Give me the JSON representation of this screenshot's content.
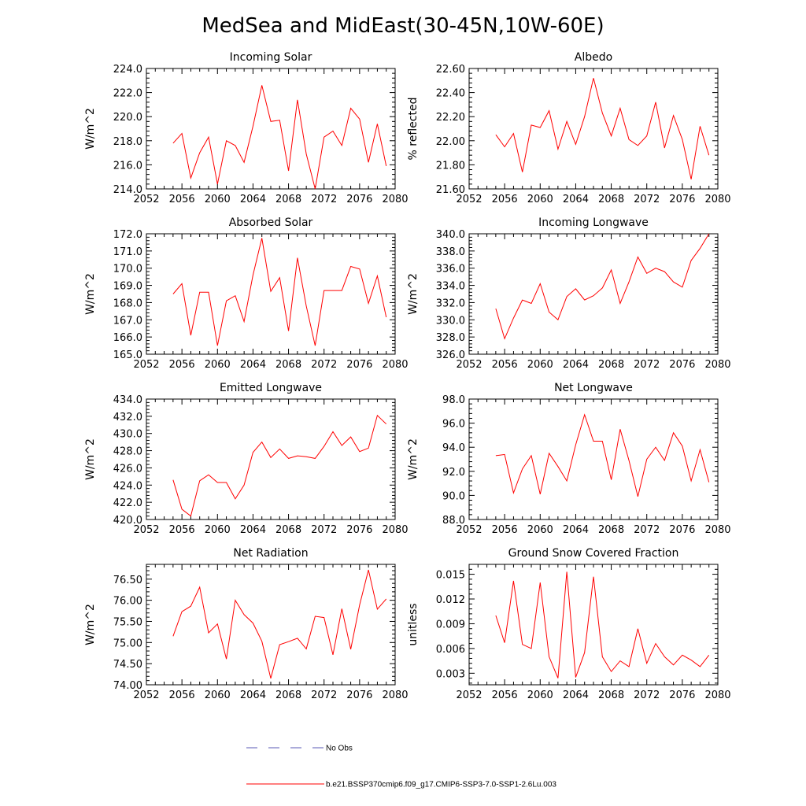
{
  "figure": {
    "title": "MedSea and MidEast(30-45N,10W-60E)"
  },
  "legend": [
    {
      "label": "No Obs",
      "color": "#5a5ab4",
      "dash": "dashed"
    },
    {
      "label": "b.e21.BSSP370cmip6.f09_g17.CMIP6-SSP3-7.0-SSP1-2.6Lu.003",
      "color": "#ff0000",
      "dash": "solid"
    }
  ],
  "chart_data": [
    {
      "type": "line",
      "title": "Incoming Solar",
      "ylabel": "W/m^2",
      "xlabel": "",
      "xlim": [
        2052,
        2080
      ],
      "xticks": [
        2052,
        2056,
        2060,
        2064,
        2068,
        2072,
        2076,
        2080
      ],
      "ylim": [
        214,
        224
      ],
      "yticks": [
        "214.0",
        "216.0",
        "218.0",
        "220.0",
        "222.0",
        "224.0"
      ],
      "x": [
        2055,
        2056,
        2057,
        2058,
        2059,
        2060,
        2061,
        2062,
        2063,
        2064,
        2065,
        2066,
        2067,
        2068,
        2069,
        2070,
        2071,
        2072,
        2073,
        2074,
        2075,
        2076,
        2077,
        2078,
        2079
      ],
      "series": [
        {
          "color": "#ff0000",
          "values": [
            217.8,
            218.6,
            214.9,
            217.0,
            218.3,
            214.4,
            218.0,
            217.6,
            216.2,
            219.2,
            222.6,
            219.6,
            219.7,
            215.5,
            221.4,
            216.9,
            214.0,
            218.3,
            218.8,
            217.6,
            220.7,
            219.8,
            216.2,
            219.4,
            215.9
          ]
        }
      ]
    },
    {
      "type": "line",
      "title": "Albedo",
      "ylabel": "% reflected",
      "xlabel": "",
      "xlim": [
        2052,
        2080
      ],
      "xticks": [
        2052,
        2056,
        2060,
        2064,
        2068,
        2072,
        2076,
        2080
      ],
      "ylim": [
        21.6,
        22.6
      ],
      "yticks": [
        "21.60",
        "21.80",
        "22.00",
        "22.20",
        "22.40",
        "22.60"
      ],
      "x": [
        2055,
        2056,
        2057,
        2058,
        2059,
        2060,
        2061,
        2062,
        2063,
        2064,
        2065,
        2066,
        2067,
        2068,
        2069,
        2070,
        2071,
        2072,
        2073,
        2074,
        2075,
        2076,
        2077,
        2078,
        2079
      ],
      "series": [
        {
          "color": "#ff0000",
          "values": [
            22.05,
            21.95,
            22.06,
            21.74,
            22.13,
            22.11,
            22.25,
            21.93,
            22.16,
            21.97,
            22.2,
            22.52,
            22.23,
            22.04,
            22.27,
            22.01,
            21.96,
            22.04,
            22.32,
            21.94,
            22.21,
            22.01,
            21.68,
            22.12,
            21.88
          ]
        }
      ]
    },
    {
      "type": "line",
      "title": "Absorbed Solar",
      "ylabel": "W/m^2",
      "xlabel": "",
      "xlim": [
        2052,
        2080
      ],
      "xticks": [
        2052,
        2056,
        2060,
        2064,
        2068,
        2072,
        2076,
        2080
      ],
      "ylim": [
        165,
        172
      ],
      "yticks": [
        "165.0",
        "166.0",
        "167.0",
        "168.0",
        "169.0",
        "170.0",
        "171.0",
        "172.0"
      ],
      "x": [
        2055,
        2056,
        2057,
        2058,
        2059,
        2060,
        2061,
        2062,
        2063,
        2064,
        2065,
        2066,
        2067,
        2068,
        2069,
        2070,
        2071,
        2072,
        2073,
        2074,
        2075,
        2076,
        2077,
        2078,
        2079
      ],
      "series": [
        {
          "color": "#ff0000",
          "values": [
            168.5,
            169.1,
            166.1,
            168.6,
            168.6,
            165.5,
            168.1,
            168.4,
            166.9,
            169.6,
            171.75,
            168.65,
            169.45,
            166.35,
            170.6,
            167.8,
            165.5,
            168.7,
            168.7,
            168.7,
            170.1,
            169.95,
            167.95,
            169.55,
            167.15
          ]
        }
      ]
    },
    {
      "type": "line",
      "title": "Incoming Longwave",
      "ylabel": "W/m^2",
      "xlabel": "",
      "xlim": [
        2052,
        2080
      ],
      "xticks": [
        2052,
        2056,
        2060,
        2064,
        2068,
        2072,
        2076,
        2080
      ],
      "ylim": [
        326,
        340
      ],
      "yticks": [
        "326.0",
        "328.0",
        "330.0",
        "332.0",
        "334.0",
        "336.0",
        "338.0",
        "340.0"
      ],
      "x": [
        2055,
        2056,
        2057,
        2058,
        2059,
        2060,
        2061,
        2062,
        2063,
        2064,
        2065,
        2066,
        2067,
        2068,
        2069,
        2070,
        2071,
        2072,
        2073,
        2074,
        2075,
        2076,
        2077,
        2078,
        2079
      ],
      "series": [
        {
          "color": "#ff0000",
          "values": [
            331.3,
            327.8,
            330.2,
            332.3,
            331.9,
            334.2,
            330.9,
            330.0,
            332.7,
            333.6,
            332.3,
            332.8,
            333.7,
            335.8,
            331.9,
            334.4,
            337.3,
            335.4,
            336.0,
            335.6,
            334.4,
            333.8,
            336.9,
            338.3,
            340.0
          ]
        }
      ]
    },
    {
      "type": "line",
      "title": "Emitted Longwave",
      "ylabel": "W/m^2",
      "xlabel": "",
      "xlim": [
        2052,
        2080
      ],
      "xticks": [
        2052,
        2056,
        2060,
        2064,
        2068,
        2072,
        2076,
        2080
      ],
      "ylim": [
        420,
        434
      ],
      "yticks": [
        "420.0",
        "422.0",
        "424.0",
        "426.0",
        "428.0",
        "430.0",
        "432.0",
        "434.0"
      ],
      "x": [
        2055,
        2056,
        2057,
        2058,
        2059,
        2060,
        2061,
        2062,
        2063,
        2064,
        2065,
        2066,
        2067,
        2068,
        2069,
        2070,
        2071,
        2072,
        2073,
        2074,
        2075,
        2076,
        2077,
        2078,
        2079
      ],
      "series": [
        {
          "color": "#ff0000",
          "values": [
            424.6,
            421.2,
            420.4,
            424.5,
            425.2,
            424.3,
            424.3,
            422.4,
            424.0,
            427.8,
            429.0,
            427.2,
            428.2,
            427.1,
            427.4,
            427.3,
            427.1,
            428.5,
            430.2,
            428.6,
            429.6,
            427.9,
            428.3,
            432.1,
            431.1
          ]
        }
      ]
    },
    {
      "type": "line",
      "title": "Net Longwave",
      "ylabel": "W/m^2",
      "xlabel": "",
      "xlim": [
        2052,
        2080
      ],
      "xticks": [
        2052,
        2056,
        2060,
        2064,
        2068,
        2072,
        2076,
        2080
      ],
      "ylim": [
        88,
        98
      ],
      "yticks": [
        "88.0",
        "90.0",
        "92.0",
        "94.0",
        "96.0",
        "98.0"
      ],
      "x": [
        2055,
        2056,
        2057,
        2058,
        2059,
        2060,
        2061,
        2062,
        2063,
        2064,
        2065,
        2066,
        2067,
        2068,
        2069,
        2070,
        2071,
        2072,
        2073,
        2074,
        2075,
        2076,
        2077,
        2078,
        2079
      ],
      "series": [
        {
          "color": "#ff0000",
          "values": [
            93.3,
            93.4,
            90.2,
            92.2,
            93.3,
            90.1,
            93.5,
            92.4,
            91.2,
            94.2,
            96.7,
            94.5,
            94.5,
            91.3,
            95.5,
            92.9,
            89.9,
            93.0,
            94.0,
            92.9,
            95.2,
            94.1,
            91.2,
            93.8,
            91.1
          ]
        }
      ]
    },
    {
      "type": "line",
      "title": "Net Radiation",
      "ylabel": "W/m^2",
      "xlabel": "",
      "xlim": [
        2052,
        2080
      ],
      "xticks": [
        2052,
        2056,
        2060,
        2064,
        2068,
        2072,
        2076,
        2080
      ],
      "ylim": [
        74,
        76.85
      ],
      "yticks": [
        "74.00",
        "74.50",
        "75.00",
        "75.50",
        "76.00",
        "76.50"
      ],
      "x": [
        2055,
        2056,
        2057,
        2058,
        2059,
        2060,
        2061,
        2062,
        2063,
        2064,
        2065,
        2066,
        2067,
        2068,
        2069,
        2070,
        2071,
        2072,
        2073,
        2074,
        2075,
        2076,
        2077,
        2078,
        2079
      ],
      "series": [
        {
          "color": "#ff0000",
          "values": [
            75.15,
            75.73,
            75.86,
            76.31,
            75.23,
            75.44,
            74.61,
            76.0,
            75.66,
            75.46,
            75.03,
            74.15,
            74.95,
            75.02,
            75.1,
            74.85,
            75.62,
            75.59,
            74.71,
            75.8,
            74.84,
            75.89,
            76.72,
            75.79,
            76.03
          ]
        }
      ]
    },
    {
      "type": "line",
      "title": "Ground Snow Covered Fraction",
      "ylabel": "unitless",
      "xlabel": "",
      "xlim": [
        2052,
        2080
      ],
      "xticks": [
        2052,
        2056,
        2060,
        2064,
        2068,
        2072,
        2076,
        2080
      ],
      "ylim": [
        0.0016,
        0.0162
      ],
      "yticks": [
        "0.003",
        "0.006",
        "0.009",
        "0.012",
        "0.015"
      ],
      "x": [
        2055,
        2056,
        2057,
        2058,
        2059,
        2060,
        2061,
        2062,
        2063,
        2064,
        2065,
        2066,
        2067,
        2068,
        2069,
        2070,
        2071,
        2072,
        2073,
        2074,
        2075,
        2076,
        2077,
        2078,
        2079
      ],
      "series": [
        {
          "color": "#ff0000",
          "values": [
            0.01,
            0.0067,
            0.0142,
            0.0065,
            0.006,
            0.014,
            0.005,
            0.0024,
            0.0153,
            0.0025,
            0.0055,
            0.0147,
            0.005,
            0.0032,
            0.0045,
            0.0038,
            0.0084,
            0.0042,
            0.0066,
            0.005,
            0.004,
            0.0052,
            0.0046,
            0.0038,
            0.0052
          ]
        }
      ]
    }
  ]
}
